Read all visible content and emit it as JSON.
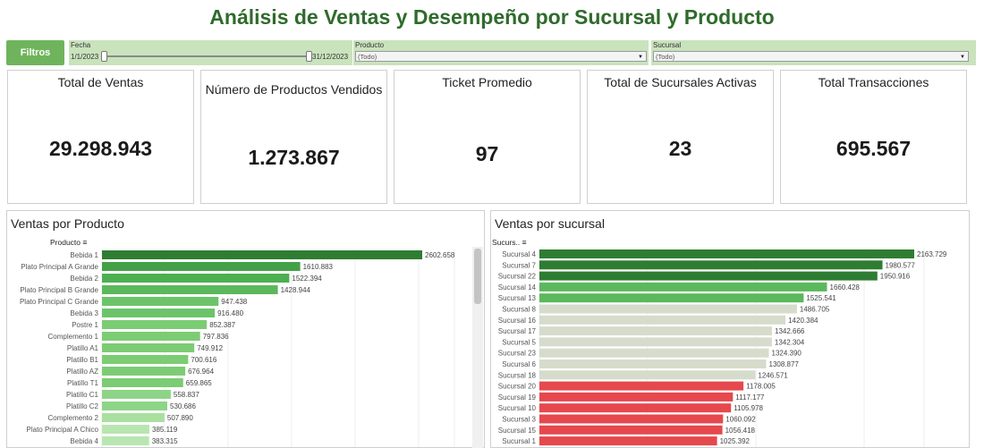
{
  "title": "Análisis de Ventas y Desempeño por Sucursal y Producto",
  "filters": {
    "button_label": "Filtros",
    "fecha": {
      "label": "Fecha",
      "start": "1/1/2023",
      "end": "31/12/2023"
    },
    "producto": {
      "label": "Producto",
      "value": "(Todo)"
    },
    "sucursal": {
      "label": "Sucursal",
      "value": "(Todo)"
    }
  },
  "kpis": [
    {
      "label": "Total de Ventas",
      "value": "29.298.943"
    },
    {
      "label": "Número de Productos Vendidos",
      "value": "1.273.867"
    },
    {
      "label": "Ticket Promedio",
      "value": "97"
    },
    {
      "label": "Total de Sucursales Activas",
      "value": "23"
    },
    {
      "label": "Total Transacciones",
      "value": "695.567"
    }
  ],
  "chart_data": [
    {
      "type": "bar",
      "orientation": "horizontal",
      "title": "Ventas por Producto",
      "field_header": "Producto",
      "categories": [
        "Bebida 1",
        "Plato Principal A Grande",
        "Bebida 2",
        "Plato Principal B Grande",
        "Plato Principal C Grande",
        "Bebida 3",
        "Postre 1",
        "Complemento 1",
        "Platillo A1",
        "Platillo B1",
        "Platillo AZ",
        "Platillo T1",
        "Platillo C1",
        "Platillo C2",
        "Complemento 2",
        "Plato Principal A Chico",
        "Bebida 4"
      ],
      "values": [
        2602658,
        1610883,
        1522394,
        1428944,
        947438,
        916480,
        852387,
        797836,
        749912,
        700616,
        676964,
        659865,
        558837,
        530686,
        507890,
        385119,
        383315
      ],
      "labels": [
        "2602.658",
        "1610.883",
        "1522.394",
        "1428.944",
        "947.438",
        "916.480",
        "852.387",
        "797.836",
        "749.912",
        "700.616",
        "676.964",
        "659.865",
        "558.837",
        "530.686",
        "507.890",
        "385.119",
        "383.315"
      ],
      "colors": [
        "#2e7d32",
        "#43a047",
        "#4caf50",
        "#5cb85c",
        "#6cc46a",
        "#6cc46a",
        "#7ccc74",
        "#7ccc74",
        "#7ccc74",
        "#7ccc74",
        "#7ccc74",
        "#7ccc74",
        "#8dd487",
        "#8dd487",
        "#a9e0a0",
        "#b8e6b0",
        "#b8e6b0"
      ],
      "grid": true
    },
    {
      "type": "bar",
      "orientation": "horizontal",
      "title": "Ventas por sucursal",
      "field_header": "Sucurs..",
      "categories": [
        "Sucursal 4",
        "Sucursal 7",
        "Sucursal 22",
        "Sucursal 14",
        "Sucursal 13",
        "Sucursal 8",
        "Sucursal 16",
        "Sucursal 17",
        "Sucursal 5",
        "Sucursal 23",
        "Sucursal 6",
        "Sucursal 18",
        "Sucursal 20",
        "Sucursal 19",
        "Sucursal 10",
        "Sucursal 3",
        "Sucursal 15",
        "Sucursal 1"
      ],
      "values": [
        2163729,
        1980577,
        1950916,
        1660428,
        1525541,
        1486705,
        1420384,
        1342666,
        1342304,
        1324390,
        1308877,
        1246571,
        1178005,
        1117177,
        1105978,
        1060092,
        1056418,
        1025392
      ],
      "labels": [
        "2163.729",
        "1980.577",
        "1950.916",
        "1660.428",
        "1525.541",
        "1486.705",
        "1420.384",
        "1342.666",
        "1342.304",
        "1324.390",
        "1308.877",
        "1246.571",
        "1178.005",
        "1117.177",
        "1105.978",
        "1060.092",
        "1056.418",
        "1025.392"
      ],
      "colors": [
        "#2e7d32",
        "#2e7d32",
        "#2e7d32",
        "#5cb85c",
        "#5cb85c",
        "#d5dccb",
        "#d5dccb",
        "#d5dccb",
        "#d5dccb",
        "#d5dccb",
        "#d5dccb",
        "#d5dccb",
        "#e5484d",
        "#e5484d",
        "#e5484d",
        "#e5484d",
        "#e5484d",
        "#e5484d"
      ],
      "grid": true
    }
  ]
}
